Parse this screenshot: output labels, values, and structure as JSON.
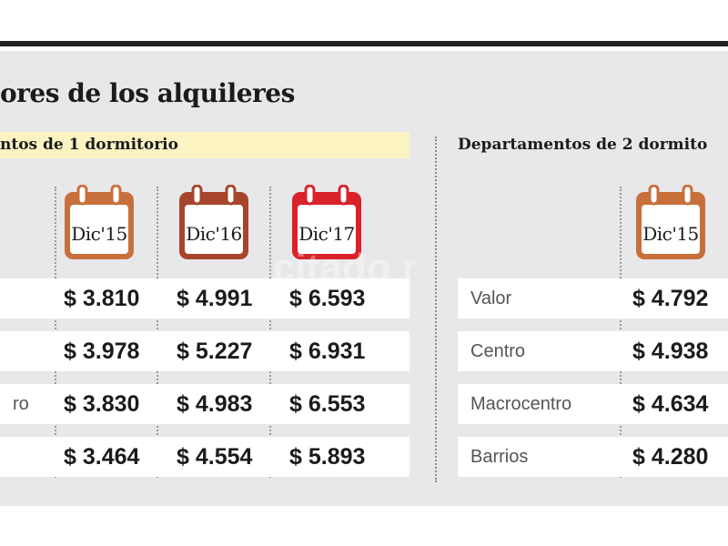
{
  "title": "ores de los alquileres",
  "sections": [
    {
      "label": "ntos de 1 dormitorio",
      "calendars": [
        {
          "label": "Dic'15",
          "color": "#c8703c"
        },
        {
          "label": "Dic'16",
          "color": "#a6452c"
        },
        {
          "label": "Dic'17",
          "color": "#d9222a"
        }
      ],
      "rows": [
        {
          "label": "",
          "values": [
            "$ 3.810",
            "$ 4.991",
            "$ 6.593"
          ]
        },
        {
          "label": "",
          "values": [
            "$ 3.978",
            "$ 5.227",
            "$ 6.931"
          ]
        },
        {
          "label": "ro",
          "values": [
            "$ 3.830",
            "$ 4.983",
            "$ 6.553"
          ]
        },
        {
          "label": "",
          "values": [
            "$ 3.464",
            "$ 4.554",
            "$ 5.893"
          ]
        }
      ]
    },
    {
      "label": "Departamentos de 2 dormito",
      "calendars": [
        {
          "label": "Dic'15",
          "color": "#c8703c"
        }
      ],
      "rows": [
        {
          "label": "Valor",
          "values": [
            "$ 4.792"
          ]
        },
        {
          "label": "Centro",
          "values": [
            "$ 4.938"
          ]
        },
        {
          "label": "Macrocentro",
          "values": [
            "$ 4.634"
          ]
        },
        {
          "label": "Barrios",
          "values": [
            "$ 4.280"
          ]
        }
      ]
    }
  ],
  "watermark": "citado r"
}
